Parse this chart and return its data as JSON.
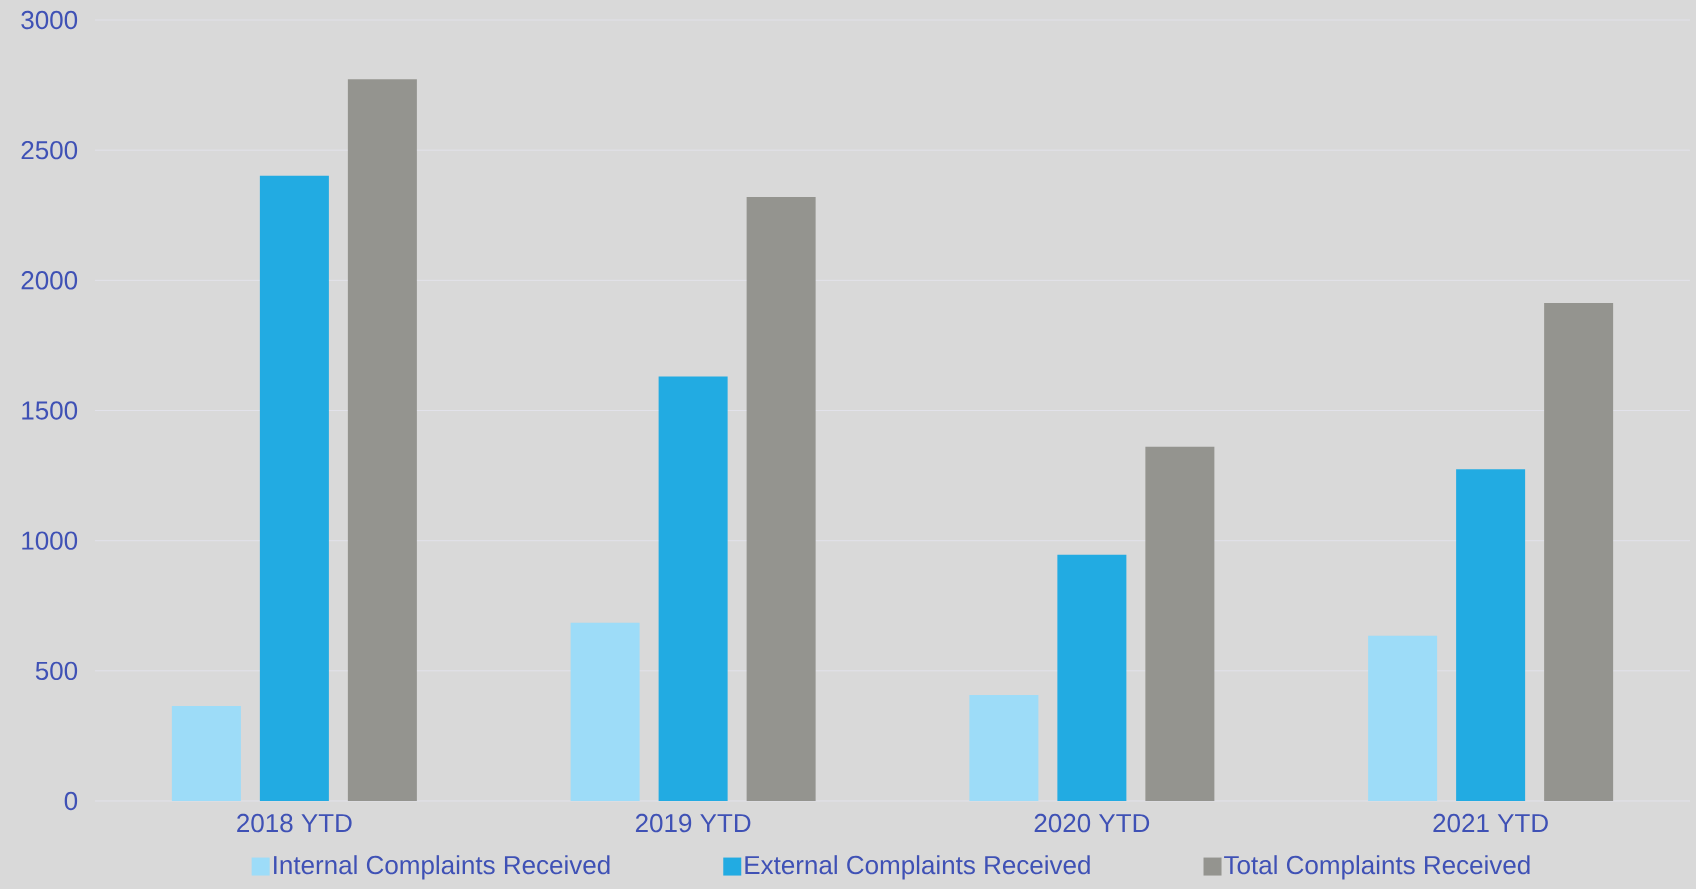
{
  "chart_data": {
    "type": "bar",
    "categories": [
      "2018 YTD",
      "2019 YTD",
      "2020 YTD",
      "2021 YTD"
    ],
    "series": [
      {
        "name": "Internal Complaints Received",
        "color": "#9ddcf8",
        "values": [
          365,
          685,
          407,
          635
        ]
      },
      {
        "name": "External Complaints Received",
        "color": "#22abe2",
        "values": [
          2402,
          1631,
          946,
          1274
        ]
      },
      {
        "name": "Total Complaints Received",
        "color": "#94948f",
        "values": [
          2772,
          2320,
          1361,
          1913
        ]
      }
    ],
    "ylim": [
      0,
      3000
    ],
    "yticks": [
      0,
      500,
      1000,
      1500,
      2000,
      2500,
      3000
    ],
    "grid": "y",
    "legend": "bottom"
  }
}
